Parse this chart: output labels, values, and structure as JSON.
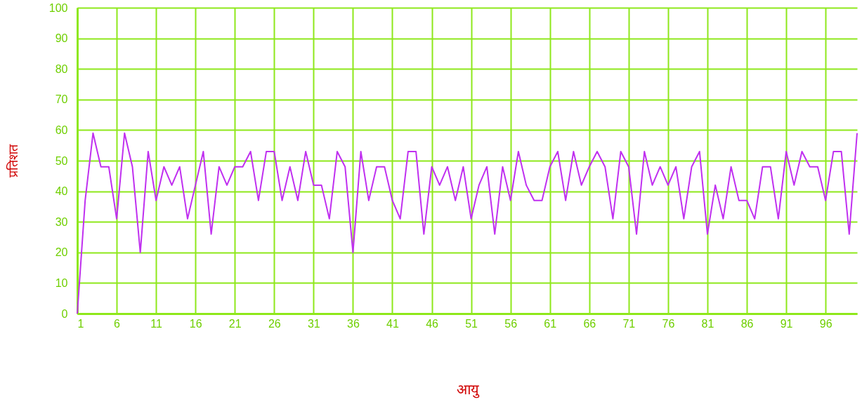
{
  "chart_data": {
    "type": "line",
    "xlabel": "आयु",
    "ylabel": "प्रतिशत",
    "x": [
      1,
      2,
      3,
      4,
      5,
      6,
      7,
      8,
      9,
      10,
      11,
      12,
      13,
      14,
      15,
      16,
      17,
      18,
      19,
      20,
      21,
      22,
      23,
      24,
      25,
      26,
      27,
      28,
      29,
      30,
      31,
      32,
      33,
      34,
      35,
      36,
      37,
      38,
      39,
      40,
      41,
      42,
      43,
      44,
      45,
      46,
      47,
      48,
      49,
      50,
      51,
      52,
      53,
      54,
      55,
      56,
      57,
      58,
      59,
      60,
      61,
      62,
      63,
      64,
      65,
      66,
      67,
      68,
      69,
      70,
      71,
      72,
      73,
      74,
      75,
      76,
      77,
      78,
      79,
      80,
      81,
      82,
      83,
      84,
      85,
      86,
      87,
      88,
      89,
      90,
      91,
      92,
      93,
      94,
      95,
      96,
      97,
      98,
      99,
      100
    ],
    "series": [
      {
        "color": "#c030f0",
        "values": [
          0,
          37,
          59,
          48,
          48,
          31,
          59,
          48,
          20,
          53,
          37,
          48,
          42,
          48,
          31,
          42,
          53,
          26,
          48,
          42,
          48,
          48,
          53,
          37,
          53,
          53,
          37,
          48,
          37,
          53,
          42,
          42,
          31,
          53,
          48,
          20,
          53,
          37,
          48,
          48,
          37,
          31,
          53,
          53,
          26,
          48,
          42,
          48,
          37,
          48,
          31,
          42,
          48,
          26,
          48,
          37,
          53,
          42,
          37,
          37,
          48,
          53,
          37,
          53,
          42,
          48,
          53,
          48,
          31,
          53,
          48,
          26,
          53,
          42,
          48,
          42,
          48,
          31,
          48,
          53,
          26,
          42,
          31,
          48,
          37,
          37,
          31,
          48,
          48,
          31,
          53,
          42,
          53,
          48,
          48,
          37,
          53,
          53,
          26,
          59
        ]
      }
    ],
    "xlim": [
      1,
      100
    ],
    "xticks": [
      1,
      6,
      11,
      16,
      21,
      26,
      31,
      36,
      41,
      46,
      51,
      56,
      61,
      66,
      71,
      76,
      81,
      86,
      91,
      96
    ],
    "ylim": [
      0,
      100
    ],
    "yticks": [
      0,
      10,
      20,
      30,
      40,
      50,
      60,
      70,
      80,
      90,
      100
    ],
    "grid": true,
    "marker": "none",
    "line_style": "solid"
  }
}
